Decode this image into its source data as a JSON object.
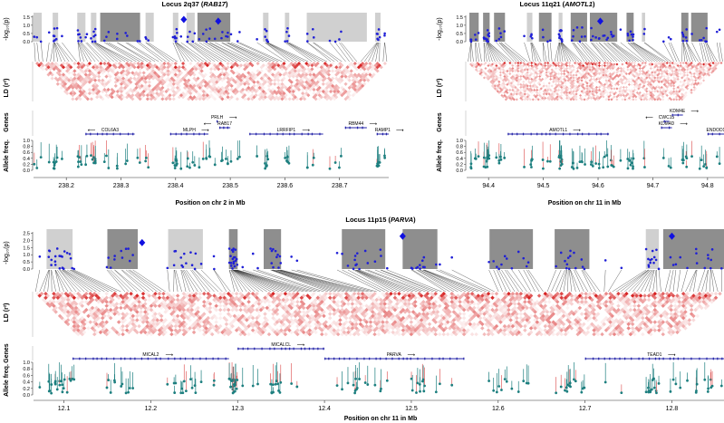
{
  "colors": {
    "assoc_point": "#1f1fd6",
    "lead_snp": "#1010e0",
    "ld_red": "#d62020",
    "freq_point": "#1d7f7f",
    "freq_line": "#e06060",
    "gene": "#2323a8",
    "block_light": "#d0d0d0",
    "block_dark": "#8e8e8e",
    "axis": "#333333"
  },
  "chart_data": [
    {
      "id": "locus-2q37",
      "type": "scatter",
      "title_prefix": "Locus 2q37 (",
      "title_gene": "RAB17",
      "title_suffix": ")",
      "xlabel": "Position on chr 2 in Mb",
      "xlim": [
        238.14,
        238.79
      ],
      "xticks": [
        238.2,
        238.3,
        238.4,
        238.5,
        238.6,
        238.7
      ],
      "xtick_labels": [
        "238.2",
        "238.3",
        "238.4",
        "238.5",
        "238.6",
        "238.7"
      ],
      "assoc_ylabel": "-log₁₀(p)",
      "assoc_ylim": [
        0,
        1.6
      ],
      "assoc_yticks": [
        "0.0",
        "0.5",
        "1.0",
        "1.5"
      ],
      "ld_ylabel": "LD (r²)",
      "genes_label": "Genes",
      "freq_ylabel": "Allele freq.",
      "freq_yticks": [
        "0.0",
        "0.2",
        "0.4",
        "0.6",
        "0.8",
        "1.0"
      ],
      "blocks": [
        {
          "start": 238.14,
          "end": 238.155,
          "shade": "light"
        },
        {
          "start": 238.175,
          "end": 238.185,
          "shade": "light"
        },
        {
          "start": 238.22,
          "end": 238.235,
          "shade": "light"
        },
        {
          "start": 238.245,
          "end": 238.255,
          "shade": "light"
        },
        {
          "start": 238.262,
          "end": 238.335,
          "shade": "dark"
        },
        {
          "start": 238.345,
          "end": 238.36,
          "shade": "light"
        },
        {
          "start": 238.395,
          "end": 238.405,
          "shade": "light"
        },
        {
          "start": 238.42,
          "end": 238.435,
          "shade": "light"
        },
        {
          "start": 238.44,
          "end": 238.5,
          "shade": "dark"
        },
        {
          "start": 238.56,
          "end": 238.57,
          "shade": "light"
        },
        {
          "start": 238.6,
          "end": 238.608,
          "shade": "light"
        },
        {
          "start": 238.64,
          "end": 238.75,
          "shade": "light"
        },
        {
          "start": 238.765,
          "end": 238.775,
          "shade": "light"
        }
      ],
      "lead_snps": [
        {
          "x": 238.415,
          "y": 1.35
        },
        {
          "x": 238.478,
          "y": 1.25
        }
      ],
      "genes": [
        {
          "name": "COL6A3",
          "start": 238.235,
          "end": 238.325,
          "strand": "-",
          "row": 0
        },
        {
          "name": "MLPH",
          "start": 238.39,
          "end": 238.46,
          "strand": "+",
          "row": 0
        },
        {
          "name": "PRLH",
          "start": 238.475,
          "end": 238.477,
          "strand": "+",
          "row": 2
        },
        {
          "name": "RAB17",
          "start": 238.48,
          "end": 238.5,
          "strand": "-",
          "row": 1
        },
        {
          "name": "LRRFIP1",
          "start": 238.535,
          "end": 238.67,
          "strand": "+",
          "row": 0
        },
        {
          "name": "RBM44",
          "start": 238.71,
          "end": 238.75,
          "strand": "+",
          "row": 1
        },
        {
          "name": "RAMP1",
          "start": 238.768,
          "end": 238.79,
          "strand": "+",
          "row": 0
        }
      ]
    },
    {
      "id": "locus-11q21",
      "type": "scatter",
      "title_prefix": "Locus 11q21 (",
      "title_gene": "AMOTL1",
      "title_suffix": ")",
      "xlabel": "Position on chr 11 in Mb",
      "xlim": [
        94.36,
        94.83
      ],
      "xticks": [
        94.4,
        94.5,
        94.6,
        94.7,
        94.8
      ],
      "xtick_labels": [
        "94.4",
        "94.5",
        "94.6",
        "94.7",
        "94.8"
      ],
      "assoc_ylabel": "-log₁₀(p)",
      "assoc_ylim": [
        0,
        1.6
      ],
      "assoc_yticks": [
        "0.0",
        "0.5",
        "1.0",
        "1.5"
      ],
      "ld_ylabel": "LD (r²)",
      "genes_label": "Genes",
      "freq_ylabel": "Allele freq.",
      "freq_yticks": [
        "0.0",
        "0.2",
        "0.4",
        "0.6",
        "0.8",
        "1.0"
      ],
      "blocks": [
        {
          "start": 94.365,
          "end": 94.382,
          "shade": "dark"
        },
        {
          "start": 94.39,
          "end": 94.402,
          "shade": "dark"
        },
        {
          "start": 94.41,
          "end": 94.43,
          "shade": "dark"
        },
        {
          "start": 94.47,
          "end": 94.48,
          "shade": "light"
        },
        {
          "start": 94.492,
          "end": 94.515,
          "shade": "dark"
        },
        {
          "start": 94.528,
          "end": 94.535,
          "shade": "light"
        },
        {
          "start": 94.55,
          "end": 94.58,
          "shade": "dark"
        },
        {
          "start": 94.585,
          "end": 94.635,
          "shade": "dark"
        },
        {
          "start": 94.652,
          "end": 94.665,
          "shade": "dark"
        },
        {
          "start": 94.68,
          "end": 94.686,
          "shade": "light"
        },
        {
          "start": 94.752,
          "end": 94.765,
          "shade": "dark"
        },
        {
          "start": 94.77,
          "end": 94.8,
          "shade": "dark"
        }
      ],
      "lead_snps": [
        {
          "x": 94.604,
          "y": 1.25
        }
      ],
      "genes": [
        {
          "name": "AMOTL1",
          "start": 94.435,
          "end": 94.62,
          "strand": "+",
          "row": 0
        },
        {
          "name": "ENDOD1",
          "start": 94.8,
          "end": 94.83,
          "strand": "+",
          "row": 0
        },
        {
          "name": "KDM4D",
          "start": 94.715,
          "end": 94.735,
          "strand": "+",
          "row": 1
        },
        {
          "name": "CWC15",
          "start": 94.72,
          "end": 94.73,
          "strand": "-",
          "row": 2
        },
        {
          "name": "KDM4E",
          "start": 94.735,
          "end": 94.755,
          "strand": "+",
          "row": 3
        }
      ]
    },
    {
      "id": "locus-11p15",
      "type": "scatter",
      "title_prefix": "Locus 11p15 (",
      "title_gene": "PARVA",
      "title_suffix": ")",
      "xlabel": "Position on chr 11 in Mb",
      "xlim": [
        12.065,
        12.86
      ],
      "xticks": [
        12.1,
        12.2,
        12.3,
        12.4,
        12.5,
        12.6,
        12.7,
        12.8
      ],
      "xtick_labels": [
        "12.1",
        "12.2",
        "12.3",
        "12.4",
        "12.5",
        "12.6",
        "12.7",
        "12.8"
      ],
      "assoc_ylabel": "-log₁₀(p)",
      "assoc_ylim": [
        0,
        2.6
      ],
      "assoc_yticks": [
        "0.0",
        "0.5",
        "1.0",
        "1.5",
        "2.0",
        "2.5"
      ],
      "ld_ylabel": "LD (r²)",
      "genes_label": "Genes",
      "freq_ylabel": "Allele freq.",
      "freq_yticks": [
        "0.0",
        "0.2",
        "0.4",
        "0.6",
        "0.8",
        "1.0"
      ],
      "blocks": [
        {
          "start": 12.08,
          "end": 12.11,
          "shade": "light"
        },
        {
          "start": 12.15,
          "end": 12.185,
          "shade": "dark"
        },
        {
          "start": 12.22,
          "end": 12.26,
          "shade": "light"
        },
        {
          "start": 12.29,
          "end": 12.3,
          "shade": "dark"
        },
        {
          "start": 12.33,
          "end": 12.35,
          "shade": "dark"
        },
        {
          "start": 12.42,
          "end": 12.47,
          "shade": "dark"
        },
        {
          "start": 12.49,
          "end": 12.53,
          "shade": "dark"
        },
        {
          "start": 12.59,
          "end": 12.64,
          "shade": "dark"
        },
        {
          "start": 12.665,
          "end": 12.705,
          "shade": "dark"
        },
        {
          "start": 12.77,
          "end": 12.785,
          "shade": "light"
        },
        {
          "start": 12.79,
          "end": 12.86,
          "shade": "dark"
        }
      ],
      "lead_snps": [
        {
          "x": 12.19,
          "y": 1.85
        },
        {
          "x": 12.49,
          "y": 2.3
        },
        {
          "x": 12.8,
          "y": 2.3
        }
      ],
      "genes": [
        {
          "name": "MICAL2",
          "start": 12.11,
          "end": 12.29,
          "strand": "+",
          "row": 0
        },
        {
          "name": "MICALCL",
          "start": 12.3,
          "end": 12.4,
          "strand": "+",
          "row": 1
        },
        {
          "name": "PARVA",
          "start": 12.4,
          "end": 12.56,
          "strand": "+",
          "row": 0
        },
        {
          "name": "TEAD1",
          "start": 12.7,
          "end": 12.86,
          "strand": "+",
          "row": 0
        }
      ]
    }
  ]
}
